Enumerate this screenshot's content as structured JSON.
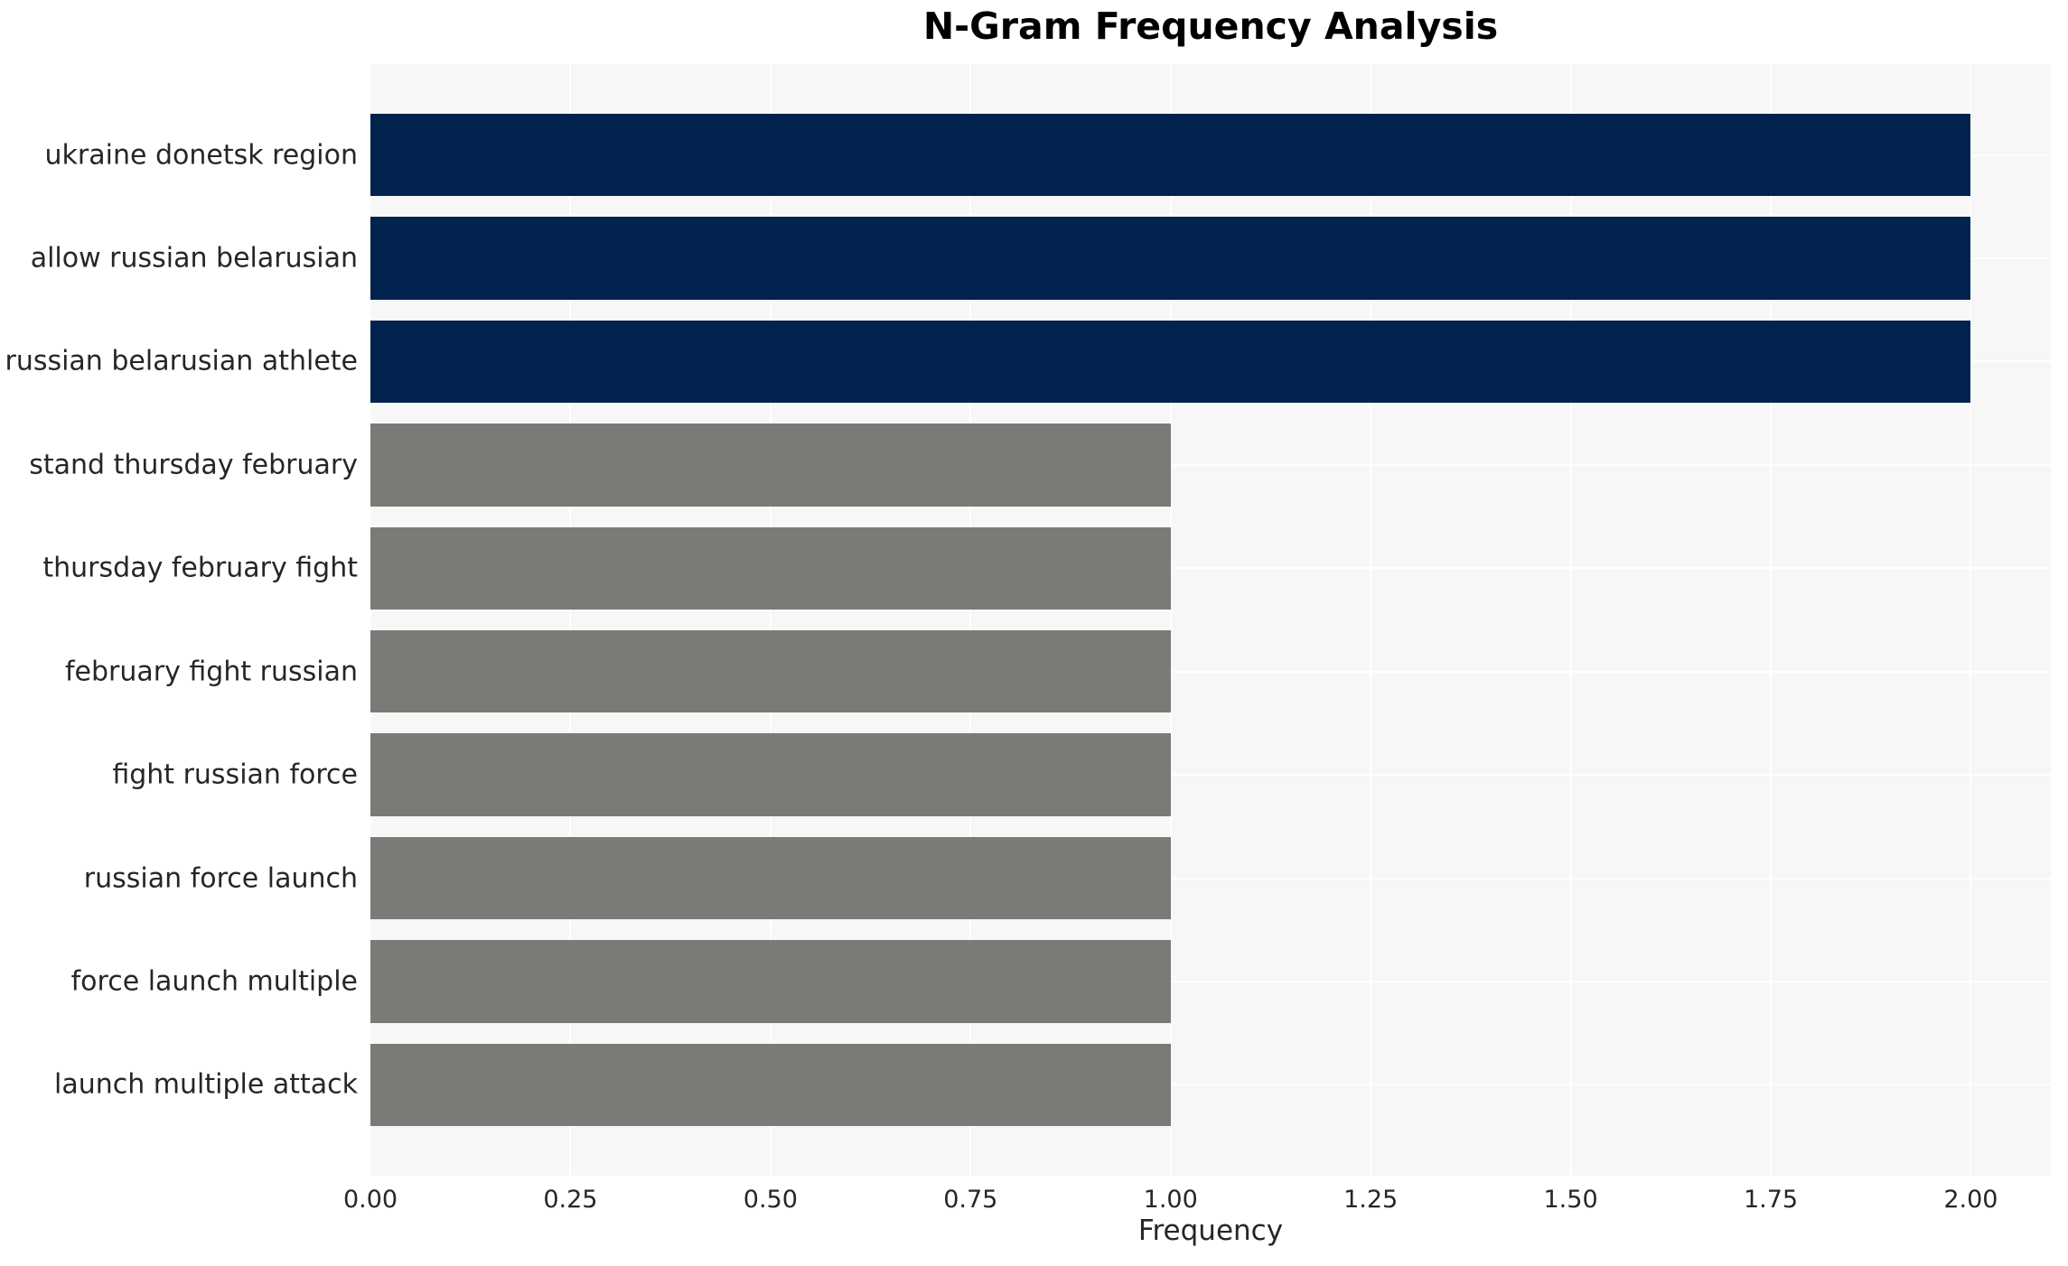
{
  "chart_data": {
    "type": "bar",
    "orientation": "horizontal",
    "title": "N-Gram Frequency Analysis",
    "xlabel": "Frequency",
    "ylabel": "",
    "categories": [
      "ukraine donetsk region",
      "allow russian belarusian",
      "russian belarusian athlete",
      "stand thursday february",
      "thursday february fight",
      "february fight russian",
      "fight russian force",
      "russian force launch",
      "force launch multiple",
      "launch multiple attack"
    ],
    "values": [
      2.0,
      2.0,
      2.0,
      1.0,
      1.0,
      1.0,
      1.0,
      1.0,
      1.0,
      1.0
    ],
    "bar_colors": [
      "#02234d",
      "#02234d",
      "#02234d",
      "#7b7a77",
      "#7b7a77",
      "#7b7a77",
      "#7b7a77",
      "#7b7a77",
      "#7b7a77",
      "#7b7a77"
    ],
    "xlim": [
      0,
      2.1
    ],
    "xticks": [
      {
        "value": 0.0,
        "label": "0.00"
      },
      {
        "value": 0.25,
        "label": "0.25"
      },
      {
        "value": 0.5,
        "label": "0.50"
      },
      {
        "value": 0.75,
        "label": "0.75"
      },
      {
        "value": 1.0,
        "label": "1.00"
      },
      {
        "value": 1.25,
        "label": "1.25"
      },
      {
        "value": 1.5,
        "label": "1.50"
      },
      {
        "value": 1.75,
        "label": "1.75"
      },
      {
        "value": 2.0,
        "label": "2.00"
      }
    ],
    "grid": true,
    "legend": false,
    "colors": {
      "high_bar": "#02234d",
      "low_bar": "#7b7a77",
      "plot_background": "#f7f7f7",
      "grid_line": "#ffffff",
      "tick_text": "#262626",
      "title_text": "#000000",
      "figure_background": "#ffffff"
    }
  }
}
